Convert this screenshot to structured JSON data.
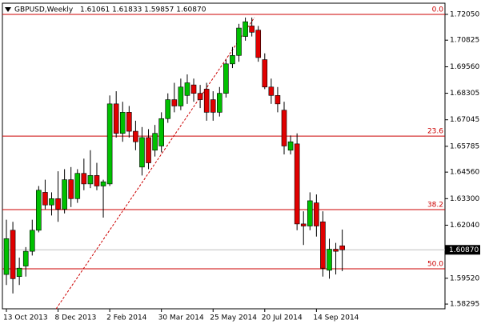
{
  "chart_data": {
    "type": "candlestick",
    "title": "GBPUSD,Weekly",
    "subtitle": "1.61061 1.61833 1.59857 1.60870",
    "categories": [
      "13 Oct 2013",
      null,
      null,
      null,
      null,
      null,
      null,
      null,
      "8 Dec 2013",
      null,
      null,
      null,
      null,
      null,
      null,
      null,
      "2 Feb 2014",
      null,
      null,
      null,
      null,
      null,
      null,
      null,
      "30 Mar 2014",
      null,
      null,
      null,
      null,
      null,
      null,
      null,
      "25 May 2014",
      null,
      null,
      null,
      null,
      null,
      null,
      null,
      "20 Jul 2014",
      null,
      null,
      null,
      null,
      null,
      null,
      null,
      "14 Sep 2014",
      null,
      null,
      null,
      null
    ],
    "open": [
      1.597,
      1.618,
      1.596,
      1.601,
      1.608,
      1.618,
      1.636,
      1.63,
      1.633,
      1.628,
      1.642,
      1.633,
      1.645,
      1.64,
      1.644,
      1.639,
      1.64,
      1.678,
      1.664,
      1.674,
      1.665,
      1.648,
      1.662,
      1.656,
      1.658,
      1.671,
      1.68,
      1.677,
      1.682,
      1.687,
      1.683,
      1.685,
      1.68,
      1.674,
      1.683,
      1.697,
      1.701,
      1.71,
      1.715,
      1.713,
      1.699,
      1.686,
      1.682,
      1.675,
      1.656,
      1.659,
      1.621,
      1.62,
      1.631,
      1.622,
      1.599,
      1.609,
      1.61061
    ],
    "high": [
      1.623,
      1.622,
      1.605,
      1.61,
      1.623,
      1.639,
      1.642,
      1.636,
      1.646,
      1.647,
      1.648,
      1.647,
      1.652,
      1.656,
      1.65,
      1.642,
      1.682,
      1.684,
      1.679,
      1.677,
      1.67,
      1.667,
      1.666,
      1.668,
      1.674,
      1.683,
      1.688,
      1.69,
      1.692,
      1.69,
      1.687,
      1.688,
      1.684,
      1.686,
      1.699,
      1.705,
      1.716,
      1.719,
      1.719,
      1.715,
      1.702,
      1.69,
      1.686,
      1.679,
      1.663,
      1.664,
      1.627,
      1.636,
      1.635,
      1.627,
      1.614,
      1.612,
      1.61833
    ],
    "low": [
      1.592,
      1.588,
      1.592,
      1.596,
      1.606,
      1.617,
      1.628,
      1.625,
      1.622,
      1.626,
      1.629,
      1.631,
      1.637,
      1.638,
      1.637,
      1.624,
      1.639,
      1.662,
      1.66,
      1.662,
      1.656,
      1.644,
      1.647,
      1.653,
      1.655,
      1.669,
      1.674,
      1.675,
      1.678,
      1.679,
      1.676,
      1.67,
      1.67,
      1.672,
      1.681,
      1.695,
      1.698,
      1.708,
      1.71,
      1.698,
      1.685,
      1.678,
      1.674,
      1.654,
      1.654,
      1.618,
      1.611,
      1.618,
      1.615,
      1.596,
      1.595,
      1.597,
      1.59857
    ],
    "close": [
      1.614,
      1.595,
      1.6,
      1.608,
      1.618,
      1.637,
      1.63,
      1.633,
      1.628,
      1.642,
      1.633,
      1.645,
      1.64,
      1.644,
      1.639,
      1.641,
      1.678,
      1.664,
      1.674,
      1.665,
      1.66,
      1.662,
      1.65,
      1.664,
      1.671,
      1.68,
      1.677,
      1.686,
      1.688,
      1.683,
      1.68,
      1.674,
      1.674,
      1.683,
      1.697,
      1.701,
      1.714,
      1.717,
      1.712,
      1.7,
      1.686,
      1.682,
      1.678,
      1.658,
      1.66,
      1.621,
      1.62,
      1.632,
      1.62,
      1.6,
      1.609,
      1.608,
      1.6087
    ],
    "up_color": "#00c000",
    "down_color": "#e00000",
    "wick_color": "#000000",
    "ylim": [
      1.5807,
      1.7258
    ],
    "yticks": [
      {
        "value": 1.7205,
        "label": "1.72050"
      },
      {
        "value": 1.70825,
        "label": "1.70825"
      },
      {
        "value": 1.6956,
        "label": "1.69560"
      },
      {
        "value": 1.68305,
        "label": "1.68305"
      },
      {
        "value": 1.67045,
        "label": "1.67045"
      },
      {
        "value": 1.65785,
        "label": "1.65785"
      },
      {
        "value": 1.6456,
        "label": "1.64560"
      },
      {
        "value": 1.633,
        "label": "1.63300"
      },
      {
        "value": 1.6204,
        "label": "1.62040"
      },
      {
        "value": 1.5952,
        "label": "1.59520"
      },
      {
        "value": 1.58295,
        "label": "1.58295"
      }
    ],
    "current_price": {
      "value": 1.6087,
      "label": "1.60870"
    },
    "fib_levels": [
      {
        "value": 1.7205,
        "label": "0.0"
      },
      {
        "value": 1.6627,
        "label": "23.6"
      },
      {
        "value": 1.6278,
        "label": "38.2"
      },
      {
        "value": 1.5997,
        "label": "50.0"
      }
    ],
    "fib_color": "#cc0000",
    "trendline": {
      "x": [
        7.7,
        38.4
      ],
      "y": [
        1.5807,
        1.719
      ]
    }
  }
}
